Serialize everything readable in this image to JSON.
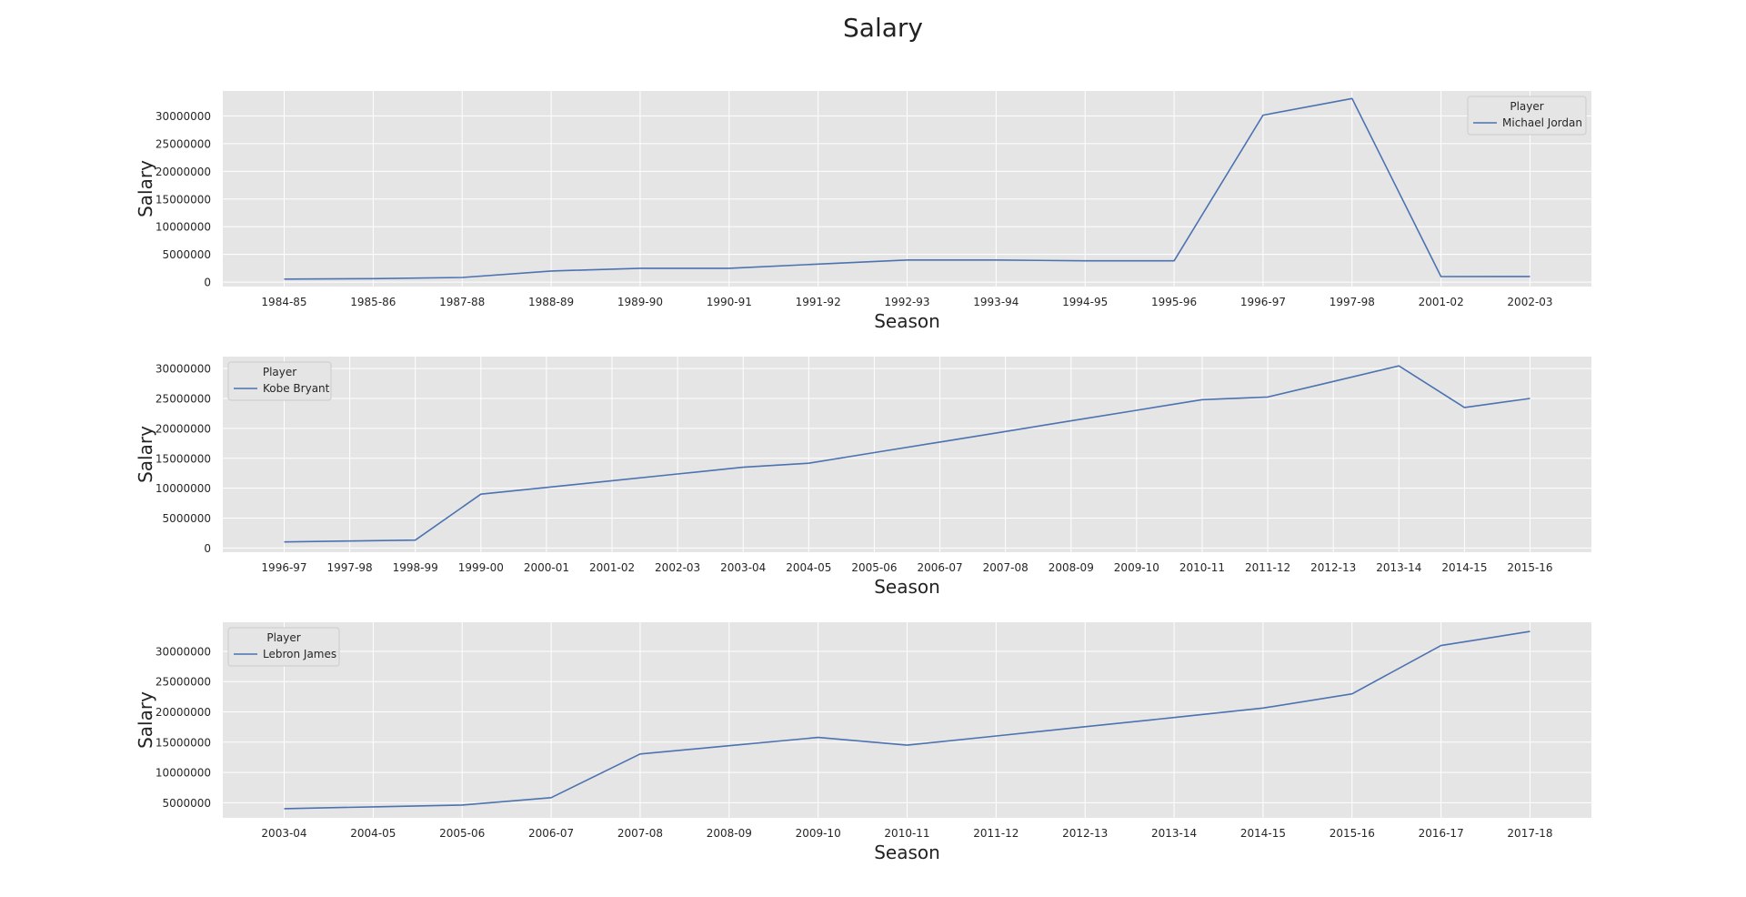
{
  "figure": {
    "title": "Salary",
    "background": "#ffffff",
    "plot_background": "#e5e5e5",
    "grid_color": "#ffffff",
    "line_color": "#4c72b0"
  },
  "chart_data": [
    {
      "type": "line",
      "xlabel": "Season",
      "ylabel": "Salary",
      "grid": true,
      "legend_placement": "top-right",
      "legend_title": "Player",
      "yticks": [
        0,
        5000000,
        10000000,
        15000000,
        20000000,
        25000000,
        30000000
      ],
      "ylim": [
        -800000,
        34500000
      ],
      "categories": [
        "1984-85",
        "1985-86",
        "1987-88",
        "1988-89",
        "1989-90",
        "1990-91",
        "1991-92",
        "1992-93",
        "1993-94",
        "1994-95",
        "1995-96",
        "1996-97",
        "1997-98",
        "2001-02",
        "2002-03"
      ],
      "series": [
        {
          "name": "Michael Jordan",
          "values": [
            550000,
            630000,
            845000,
            2000000,
            2500000,
            2500000,
            3250000,
            4000000,
            4000000,
            3850000,
            3850000,
            30140000,
            33140000,
            1000000,
            1030000
          ]
        }
      ]
    },
    {
      "type": "line",
      "xlabel": "Season",
      "ylabel": "Salary",
      "grid": true,
      "legend_placement": "top-left",
      "legend_title": "Player",
      "yticks": [
        0,
        5000000,
        10000000,
        15000000,
        20000000,
        25000000,
        30000000
      ],
      "ylim": [
        -700000,
        32000000
      ],
      "categories": [
        "1996-97",
        "1997-98",
        "1998-99",
        "1999-00",
        "2000-01",
        "2001-02",
        "2002-03",
        "2003-04",
        "2004-05",
        "2005-06",
        "2006-07",
        "2007-08",
        "2008-09",
        "2009-10",
        "2010-11",
        "2011-12",
        "2012-13",
        "2013-14",
        "2014-15",
        "2015-16"
      ],
      "series": [
        {
          "name": "Kobe Bryant",
          "values": [
            1015000,
            1167000,
            1320000,
            9000000,
            10130000,
            11250000,
            12380000,
            13500000,
            14180000,
            15950000,
            17720000,
            19490000,
            21260000,
            23030000,
            24810000,
            25240000,
            27850000,
            30450000,
            23500000,
            25000000
          ]
        }
      ]
    },
    {
      "type": "line",
      "xlabel": "Season",
      "ylabel": "Salary",
      "grid": true,
      "legend_placement": "top-left",
      "legend_title": "Player",
      "yticks": [
        5000000,
        10000000,
        15000000,
        20000000,
        25000000,
        30000000
      ],
      "ylim": [
        2500000,
        34800000
      ],
      "categories": [
        "2003-04",
        "2004-05",
        "2005-06",
        "2006-07",
        "2007-08",
        "2008-09",
        "2009-10",
        "2010-11",
        "2011-12",
        "2012-13",
        "2013-14",
        "2014-15",
        "2015-16",
        "2016-17",
        "2017-18"
      ],
      "series": [
        {
          "name": "Lebron James",
          "values": [
            4020000,
            4320000,
            4620000,
            5830000,
            13040000,
            14410000,
            15780000,
            14500000,
            16020000,
            17550000,
            19070000,
            20640000,
            22970000,
            30960000,
            33290000
          ]
        }
      ]
    }
  ]
}
